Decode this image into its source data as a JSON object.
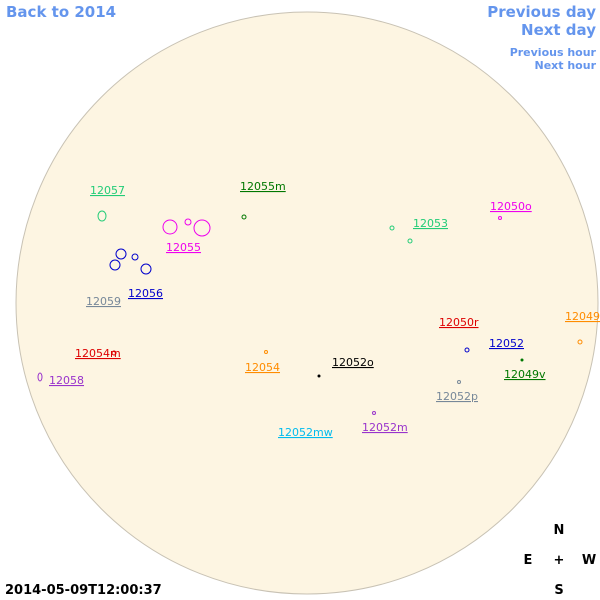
{
  "navigation": {
    "back": "Back to 2014",
    "previous_day": "Previous day",
    "next_day": "Next day",
    "previous_hour": "Previous hour",
    "next_hour": "Next hour"
  },
  "regions": [
    {
      "label": "12057",
      "color": "#22cc77"
    },
    {
      "label": "12055m",
      "color": "#007700"
    },
    {
      "label": "12050o",
      "color": "#ee00ee"
    },
    {
      "label": "12053",
      "color": "#22cc77"
    },
    {
      "label": "12055",
      "color": "#ee00ee"
    },
    {
      "label": "12056",
      "color": "#0000cc"
    },
    {
      "label": "12059",
      "color": "#778899"
    },
    {
      "label": "12050r",
      "color": "#dd0000"
    },
    {
      "label": "12049",
      "color": "#ff8c00"
    },
    {
      "label": "12052",
      "color": "#0000cc"
    },
    {
      "label": "12054m",
      "color": "#dd0000"
    },
    {
      "label": "12052o",
      "color": "#000000"
    },
    {
      "label": "12054",
      "color": "#ff8c00"
    },
    {
      "label": "12049v",
      "color": "#007700"
    },
    {
      "label": "12058",
      "color": "#9933cc"
    },
    {
      "label": "12052p",
      "color": "#778899"
    },
    {
      "label": "12052m",
      "color": "#9933cc"
    },
    {
      "label": "12052mw",
      "color": "#00bbee"
    }
  ],
  "compass": {
    "north": "N",
    "east": "E",
    "center": "+",
    "west": "W",
    "south": "S"
  },
  "timestamp": "2014-05-09T12:00:37"
}
